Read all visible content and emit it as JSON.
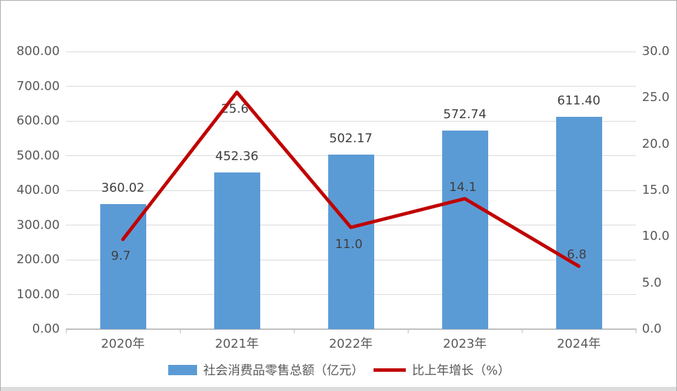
{
  "chart_data": {
    "type": "bar",
    "subtype": "combo-bar-line",
    "title": "",
    "categories": [
      "2020年",
      "2021年",
      "2022年",
      "2023年",
      "2024年"
    ],
    "series": [
      {
        "name": "社会消费品零售总额（亿元）",
        "type": "bar",
        "axis": "left",
        "color": "#5b9bd5",
        "values": [
          360.02,
          452.36,
          502.17,
          572.74,
          611.4
        ],
        "labels": [
          "360.02",
          "452.36",
          "502.17",
          "572.74",
          "611.40"
        ]
      },
      {
        "name": "比上年增长（%）",
        "type": "line",
        "axis": "right",
        "color": "#c00000",
        "values": [
          9.7,
          25.6,
          11.0,
          14.1,
          6.8
        ],
        "labels": [
          "9.7",
          "25.6",
          "11.0",
          "14.1",
          "6.8"
        ],
        "label_positions": [
          "below",
          "below",
          "below",
          "above",
          "above"
        ]
      }
    ],
    "left_axis": {
      "min": 0,
      "max": 800,
      "step": 100,
      "tick_labels": [
        "800.00",
        "700.00",
        "600.00",
        "500.00",
        "400.00",
        "300.00",
        "200.00",
        "100.00",
        "0.00"
      ]
    },
    "right_axis": {
      "min": 0,
      "max": 30,
      "step": 5,
      "tick_labels": [
        "30.0",
        "25.0",
        "20.0",
        "15.0",
        "10.0",
        "5.0",
        "0.0"
      ]
    },
    "grid": true,
    "legend_position": "bottom"
  },
  "legend": {
    "items": [
      {
        "label": "社会消费品零售总额（亿元）",
        "swatch": "bar",
        "color": "#5b9bd5"
      },
      {
        "label": "比上年增长（%）",
        "swatch": "line",
        "color": "#c00000"
      }
    ]
  },
  "colors": {
    "bar": "#5b9bd5",
    "line": "#c00000",
    "gridline": "#d9d9d9",
    "axis_line": "#bfbfbf",
    "axis_text": "#595959",
    "data_label_text": "#404040",
    "frame_border": "#ababab",
    "bottom_strip": "#dcdcdc"
  }
}
